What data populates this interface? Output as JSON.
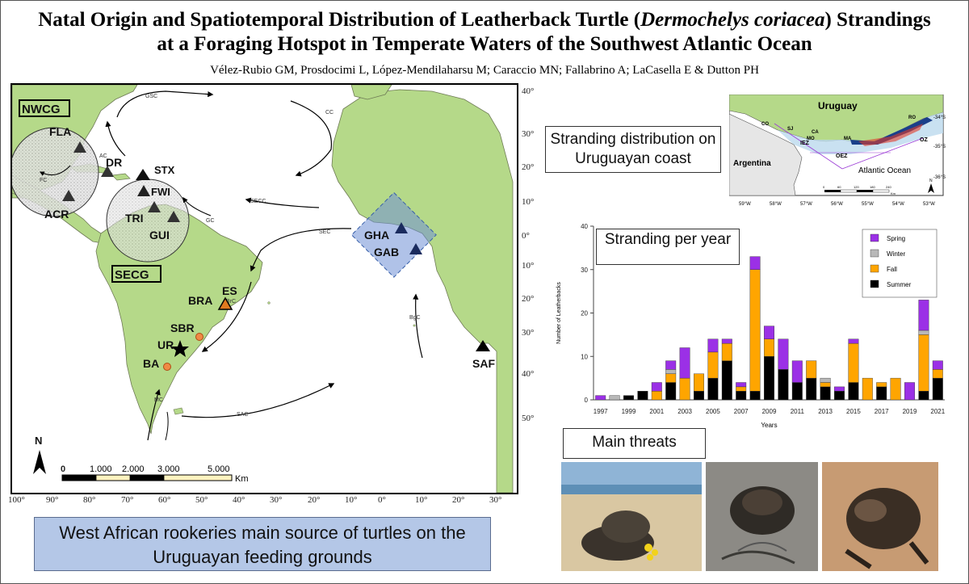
{
  "title_part1": "Natal Origin and Spatiotemporal Distribution of Leatherback Turtle (",
  "title_italic": "Dermochelys coriacea",
  "title_part2": ") Strandings",
  "title_line2": "at a Foraging Hotspot in Temperate Waters of the Southwest Atlantic Ocean",
  "authors": "Vélez-Rubio GM, Prosdocimi L, López-Mendilaharsu M; Caraccio MN; Fallabrino A; LaCasella E & Dutton PH",
  "map": {
    "groups": {
      "nwcg": "NWCG",
      "secg": "SECG"
    },
    "rookeries": {
      "fla": "FLA",
      "dr": "DR",
      "stx": "STX",
      "fwi": "FWI",
      "acr": "ACR",
      "tri": "TRI",
      "gui": "GUI",
      "gha": "GHA",
      "gab": "GAB",
      "saf": "SAF"
    },
    "foraging": {
      "es": "ES",
      "bra": "BRA",
      "sbr": "SBR",
      "ur": "UR",
      "ba": "BA"
    },
    "currents": {
      "gsc": "GSC",
      "cc": "CC",
      "ac": "AC",
      "fc": "FC",
      "gc": "GC",
      "secc": "SECC",
      "sec": "SEC",
      "brc": "BrC",
      "bgc": "BgC",
      "mc": "MC",
      "sac": "SAC"
    },
    "lon_labels": [
      "100°",
      "90°",
      "80°",
      "70°",
      "60°",
      "50°",
      "40°",
      "30°",
      "20°",
      "10°",
      "0°",
      "10°",
      "20°",
      "30°"
    ],
    "lat_labels": [
      "40°",
      "30°",
      "20°",
      "10°",
      "0°",
      "10°",
      "20°",
      "30°",
      "40°",
      "50°"
    ],
    "north": "N",
    "scale": {
      "ticks": [
        "0",
        "1.000",
        "2.000",
        "3.000",
        "5.000"
      ],
      "unit": "Km"
    }
  },
  "boxes": {
    "stranding_dist": "Stranding distribution on Uruguayan coast",
    "stranding_year": "Stranding per year",
    "threats": "Main threats"
  },
  "conclusion": "West African rookeries main source of turtles on the Uruguayan feeding grounds",
  "inset": {
    "uruguay": "Uruguay",
    "argentina": "Argentina",
    "atlantic": "Atlantic Ocean",
    "zones": [
      "CO",
      "SJ",
      "CA",
      "MO",
      "MA",
      "RO",
      "IEZ",
      "OEZ",
      "OZ"
    ],
    "lat_labels": [
      "-34°S",
      "-35°S",
      "-36°S"
    ],
    "lon_labels": [
      "59°W",
      "58°W",
      "57°W",
      "56°W",
      "55°W",
      "54°W",
      "53°W"
    ],
    "scale_ticks": [
      "0",
      "60",
      "120",
      "180",
      "240"
    ],
    "scale_unit": "Km",
    "north": "N"
  },
  "colors": {
    "spring": "#9b30e6",
    "winter": "#b8b8b8",
    "fall": "#ffa500",
    "summer": "#000000",
    "concl_bg": "#b4c7e7",
    "land": "#b5d989"
  },
  "chart_data": {
    "type": "bar",
    "stacked": true,
    "xlabel": "Years",
    "ylabel": "Number of Leatherbacks",
    "ylim": [
      0,
      40
    ],
    "yticks": [
      0,
      10,
      20,
      30,
      40
    ],
    "x_tick_labels": [
      "1997",
      "1999",
      "2001",
      "2003",
      "2005",
      "2007",
      "2009",
      "2011",
      "2013",
      "2015",
      "2017",
      "2019",
      "2021"
    ],
    "categories": [
      1997,
      1998,
      1999,
      2000,
      2001,
      2002,
      2003,
      2004,
      2005,
      2006,
      2007,
      2008,
      2009,
      2010,
      2011,
      2012,
      2013,
      2014,
      2015,
      2016,
      2017,
      2018,
      2019,
      2020,
      2021
    ],
    "legend_position": "top-right",
    "series": [
      {
        "name": "Summer",
        "color": "#000000",
        "values": [
          0,
          0,
          1,
          2,
          0,
          4,
          0,
          2,
          5,
          9,
          2,
          2,
          10,
          7,
          4,
          5,
          3,
          2,
          4,
          0,
          3,
          0,
          0,
          2,
          5
        ]
      },
      {
        "name": "Fall",
        "color": "#ffa500",
        "values": [
          0,
          0,
          0,
          0,
          2,
          2,
          5,
          4,
          6,
          4,
          1,
          28,
          4,
          0,
          0,
          4,
          1,
          0,
          9,
          5,
          1,
          5,
          0,
          13,
          2
        ]
      },
      {
        "name": "Winter",
        "color": "#b8b8b8",
        "values": [
          0,
          1,
          0,
          0,
          0,
          1,
          0,
          0,
          0,
          0,
          0,
          0,
          0,
          0,
          0,
          0,
          1,
          0,
          0,
          0,
          0,
          0,
          0,
          1,
          0
        ]
      },
      {
        "name": "Spring",
        "color": "#9b30e6",
        "values": [
          1,
          0,
          0,
          0,
          2,
          2,
          7,
          0,
          3,
          1,
          1,
          3,
          3,
          7,
          5,
          0,
          0,
          1,
          1,
          0,
          0,
          0,
          4,
          7,
          2
        ]
      }
    ]
  }
}
